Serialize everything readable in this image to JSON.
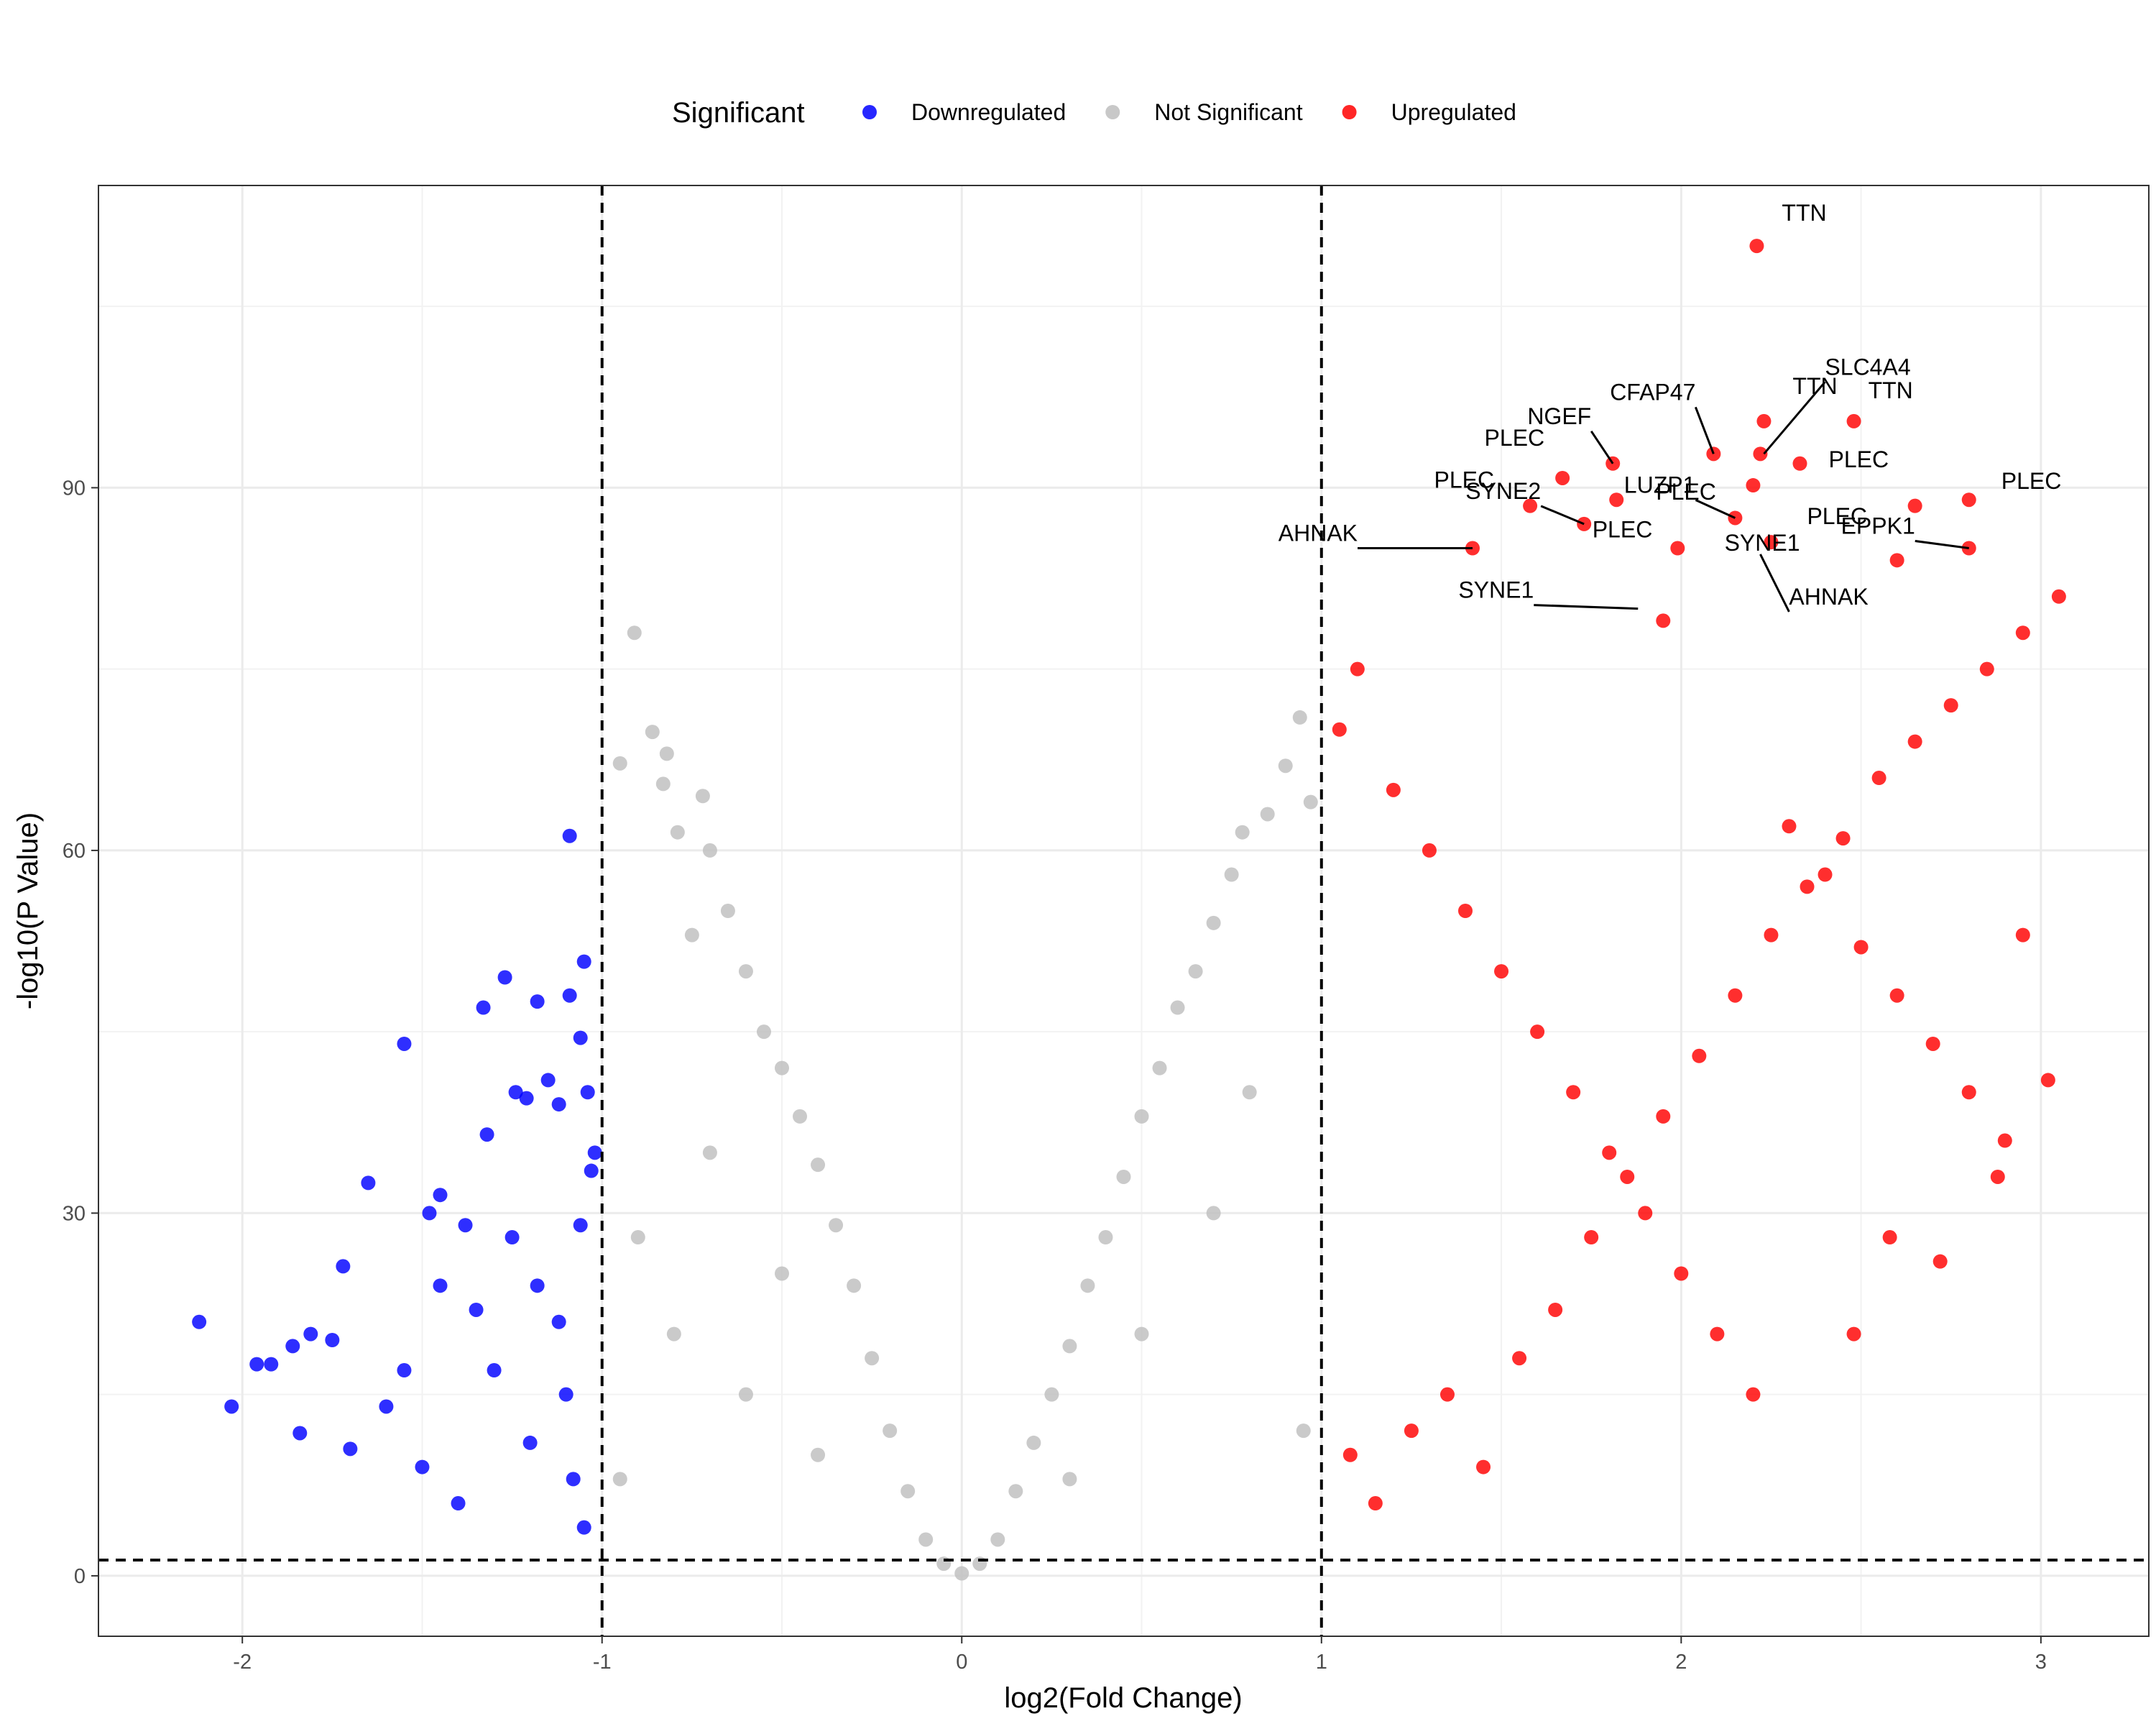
{
  "chart_data": {
    "type": "scatter",
    "xlabel": "log2(Fold Change)",
    "ylabel": "-log10(P Value)",
    "xlim": [
      -2.4,
      3.3
    ],
    "ylim": [
      -5,
      115
    ],
    "x_ticks": [
      -2,
      -1,
      0,
      1,
      2,
      3
    ],
    "y_ticks": [
      0,
      30,
      60,
      90
    ],
    "x_tick_labels": [
      "-2",
      "-1",
      "0",
      "1",
      "2",
      "3"
    ],
    "y_tick_labels": [
      "0",
      "30",
      "60",
      "90"
    ],
    "grid": true,
    "thresholds": {
      "log2fc": [
        -1,
        1
      ],
      "neg_log10_p": 1.3
    },
    "legend": {
      "title": "Significant",
      "position": "top",
      "items": [
        {
          "label": "Downregulated",
          "color": "#0000FF"
        },
        {
          "label": "Not Significant",
          "color": "#BEBEBE"
        },
        {
          "label": "Upregulated",
          "color": "#FF0000"
        }
      ]
    },
    "colors": {
      "down": "#0000FF",
      "ns": "#BEBEBE",
      "up": "#FF0000"
    },
    "points": {
      "Downregulated": [
        [
          -2.12,
          21
        ],
        [
          -2.03,
          14
        ],
        [
          -1.96,
          17.5
        ],
        [
          -1.92,
          17.5
        ],
        [
          -1.86,
          19
        ],
        [
          -1.84,
          11.8
        ],
        [
          -1.81,
          20
        ],
        [
          -1.75,
          19.5
        ],
        [
          -1.72,
          25.6
        ],
        [
          -1.7,
          10.5
        ],
        [
          -1.65,
          32.5
        ],
        [
          -1.55,
          44
        ],
        [
          -1.48,
          30
        ],
        [
          -1.45,
          31.5
        ],
        [
          -1.38,
          29
        ],
        [
          -1.33,
          47
        ],
        [
          -1.32,
          36.5
        ],
        [
          -1.27,
          49.5
        ],
        [
          -1.24,
          40
        ],
        [
          -1.21,
          39.5
        ],
        [
          -1.18,
          47.5
        ],
        [
          -1.15,
          41
        ],
        [
          -1.12,
          39
        ],
        [
          -1.09,
          61.2
        ],
        [
          -1.09,
          48
        ],
        [
          -1.06,
          44.5
        ],
        [
          -1.05,
          50.8
        ],
        [
          -1.04,
          40
        ],
        [
          -1.03,
          33.5
        ],
        [
          -1.02,
          35
        ],
        [
          -1.05,
          4
        ],
        [
          -1.08,
          8
        ],
        [
          -1.4,
          6
        ],
        [
          -1.5,
          9
        ],
        [
          -1.6,
          14
        ],
        [
          -1.35,
          22
        ],
        [
          -1.25,
          28
        ],
        [
          -1.18,
          24
        ],
        [
          -1.12,
          21
        ],
        [
          -1.06,
          29
        ],
        [
          -1.3,
          17
        ],
        [
          -1.45,
          24
        ],
        [
          -1.2,
          11
        ],
        [
          -1.1,
          15
        ],
        [
          -1.55,
          17
        ]
      ],
      "Not Significant": [
        [
          -0.91,
          78
        ],
        [
          -0.95,
          67.2
        ],
        [
          -0.86,
          69.8
        ],
        [
          -0.83,
          65.5
        ],
        [
          -0.82,
          68
        ],
        [
          -0.79,
          61.5
        ],
        [
          -0.75,
          53
        ],
        [
          -0.72,
          64.5
        ],
        [
          -0.7,
          60
        ],
        [
          -0.65,
          55
        ],
        [
          -0.6,
          50
        ],
        [
          -0.55,
          45
        ],
        [
          -0.5,
          42
        ],
        [
          -0.45,
          38
        ],
        [
          -0.4,
          34
        ],
        [
          -0.35,
          29
        ],
        [
          -0.3,
          24
        ],
        [
          -0.25,
          18
        ],
        [
          -0.2,
          12
        ],
        [
          -0.15,
          7
        ],
        [
          -0.1,
          3
        ],
        [
          -0.05,
          1
        ],
        [
          0.0,
          0.2
        ],
        [
          0.05,
          1
        ],
        [
          0.1,
          3
        ],
        [
          0.15,
          7
        ],
        [
          0.2,
          11
        ],
        [
          0.25,
          15
        ],
        [
          0.3,
          19
        ],
        [
          0.35,
          24
        ],
        [
          0.4,
          28
        ],
        [
          0.45,
          33
        ],
        [
          0.5,
          38
        ],
        [
          0.55,
          42
        ],
        [
          0.6,
          47
        ],
        [
          0.65,
          50
        ],
        [
          0.7,
          54
        ],
        [
          0.75,
          58
        ],
        [
          0.78,
          61.5
        ],
        [
          0.85,
          63
        ],
        [
          0.9,
          67
        ],
        [
          0.94,
          71
        ],
        [
          0.97,
          64
        ],
        [
          -0.8,
          20
        ],
        [
          -0.6,
          15
        ],
        [
          -0.5,
          25
        ],
        [
          -0.4,
          10
        ],
        [
          -0.7,
          35
        ],
        [
          -0.9,
          28
        ],
        [
          0.3,
          8
        ],
        [
          0.5,
          20
        ],
        [
          0.7,
          30
        ],
        [
          0.8,
          40
        ],
        [
          0.95,
          12
        ],
        [
          -0.95,
          8
        ]
      ],
      "Upregulated": [
        [
          2.21,
          110
        ],
        [
          2.23,
          95.5
        ],
        [
          2.22,
          92.8
        ],
        [
          2.09,
          92.8
        ],
        [
          1.81,
          92
        ],
        [
          1.67,
          90.8
        ],
        [
          2.2,
          90.2
        ],
        [
          1.58,
          88.5
        ],
        [
          1.82,
          89
        ],
        [
          1.73,
          87
        ],
        [
          2.15,
          87.5
        ],
        [
          1.42,
          85
        ],
        [
          2.48,
          95.5
        ],
        [
          2.33,
          92
        ],
        [
          2.8,
          89
        ],
        [
          2.65,
          88.5
        ],
        [
          2.8,
          85
        ],
        [
          2.6,
          84
        ],
        [
          2.25,
          85.5
        ],
        [
          1.99,
          85
        ],
        [
          3.05,
          81
        ],
        [
          1.95,
          79
        ],
        [
          1.05,
          70
        ],
        [
          1.1,
          75
        ],
        [
          1.2,
          65
        ],
        [
          1.3,
          60
        ],
        [
          1.4,
          55
        ],
        [
          1.5,
          50
        ],
        [
          1.6,
          45
        ],
        [
          1.7,
          40
        ],
        [
          1.8,
          35
        ],
        [
          1.9,
          30
        ],
        [
          2.0,
          25
        ],
        [
          2.1,
          20
        ],
        [
          2.2,
          15
        ],
        [
          2.3,
          62
        ],
        [
          2.4,
          58
        ],
        [
          2.5,
          52
        ],
        [
          2.6,
          48
        ],
        [
          2.7,
          44
        ],
        [
          2.8,
          40
        ],
        [
          2.9,
          36
        ],
        [
          3.02,
          41
        ],
        [
          2.95,
          53
        ],
        [
          2.88,
          33
        ],
        [
          2.72,
          26
        ],
        [
          2.58,
          28
        ],
        [
          2.48,
          20
        ],
        [
          1.08,
          10
        ],
        [
          1.15,
          6
        ],
        [
          1.25,
          12
        ],
        [
          1.35,
          15
        ],
        [
          1.45,
          9
        ],
        [
          1.55,
          18
        ],
        [
          1.65,
          22
        ],
        [
          1.75,
          28
        ],
        [
          1.85,
          33
        ],
        [
          1.95,
          38
        ],
        [
          2.05,
          43
        ],
        [
          2.15,
          48
        ],
        [
          2.25,
          53
        ],
        [
          2.35,
          57
        ],
        [
          2.45,
          61
        ],
        [
          2.55,
          66
        ],
        [
          2.65,
          69
        ],
        [
          2.75,
          72
        ],
        [
          2.85,
          75
        ],
        [
          2.95,
          78
        ]
      ]
    },
    "annotations": [
      {
        "label": "TTN",
        "x": 2.21,
        "y": 110
      },
      {
        "label": "SLC4A4",
        "x": 2.23,
        "y": 92.8
      },
      {
        "label": "CFAP47",
        "x": 2.09,
        "y": 92.8
      },
      {
        "label": "TTN",
        "x": 2.23,
        "y": 95.5
      },
      {
        "label": "TTN",
        "x": 2.48,
        "y": 95.5
      },
      {
        "label": "NGEF",
        "x": 1.81,
        "y": 92
      },
      {
        "label": "PLEC",
        "x": 1.67,
        "y": 90.8
      },
      {
        "label": "PLEC",
        "x": 1.82,
        "y": 89
      },
      {
        "label": "PLEC",
        "x": 2.33,
        "y": 92
      },
      {
        "label": "PLEC",
        "x": 2.8,
        "y": 89
      },
      {
        "label": "PLEC",
        "x": 1.58,
        "y": 88.5
      },
      {
        "label": "PLEC",
        "x": 1.99,
        "y": 85
      },
      {
        "label": "PLEC",
        "x": 2.25,
        "y": 85.5
      },
      {
        "label": "EPPK1",
        "x": 2.8,
        "y": 85
      },
      {
        "label": "AHNAK",
        "x": 1.42,
        "y": 85
      },
      {
        "label": "SYNE2",
        "x": 1.73,
        "y": 87
      },
      {
        "label": "LUZP1",
        "x": 2.15,
        "y": 87.5
      },
      {
        "label": "SYNE1",
        "x": 2.35,
        "y": 83
      },
      {
        "label": "SYNE1",
        "x": 1.88,
        "y": 80
      },
      {
        "label": "AHNAK",
        "x": 2.22,
        "y": 84.5
      }
    ]
  }
}
